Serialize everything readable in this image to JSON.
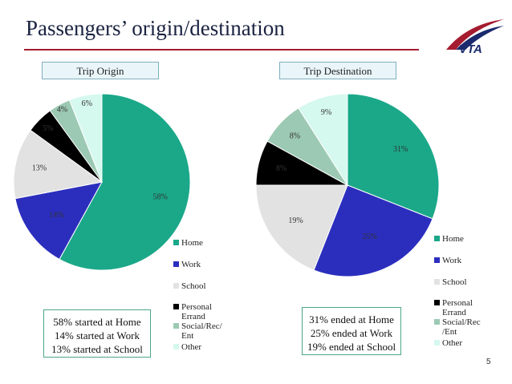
{
  "slide": {
    "title": "Passengers’ origin/destination",
    "logo_text": "VTA",
    "page_number": "5"
  },
  "colors": {
    "title": "#1a2240",
    "rule": "#a51c30",
    "label_box_border": "#7fb0bf",
    "label_box_fill": "#e9f5f9",
    "summary_border": "#4ba58a",
    "logo_red": "#a51c30",
    "logo_navy": "#1a2a6c"
  },
  "chart_data": [
    {
      "type": "pie",
      "title": "Trip Origin",
      "categories": [
        "Home",
        "Work",
        "School",
        "Personal Errand",
        "Social/Rec/Ent",
        "Other"
      ],
      "values": [
        58,
        14,
        13,
        5,
        4,
        6
      ],
      "value_labels": [
        "58%",
        "14%",
        "13%",
        "5%",
        "4%",
        "6%"
      ],
      "colors": [
        "#1aa889",
        "#2b2ebd",
        "#e2e2e2",
        "#000000",
        "#9cc9b3",
        "#d5f8ef"
      ],
      "legend_labels": [
        "Home",
        "Work",
        "School",
        "Personal Errand",
        "Social/Rec/ Ent",
        "Other"
      ],
      "summary": [
        "58% started at Home",
        "14% started at Work",
        "13% started at School"
      ]
    },
    {
      "type": "pie",
      "title": "Trip Destination",
      "categories": [
        "Home",
        "Work",
        "School",
        "Personal Errand",
        "Social/Rec/Ent",
        "Other"
      ],
      "values": [
        31,
        25,
        19,
        8,
        8,
        9
      ],
      "value_labels": [
        "31%",
        "25%",
        "19%",
        "8%",
        "8%",
        "9%"
      ],
      "colors": [
        "#1aa889",
        "#2b2ebd",
        "#e2e2e2",
        "#000000",
        "#9cc9b3",
        "#d5f8ef"
      ],
      "legend_labels": [
        "Home",
        "Work",
        "School",
        "Personal Errand",
        "Social/Rec /Ent",
        "Other"
      ],
      "summary": [
        "31% ended at Home",
        "25% ended at Work",
        "19% ended at School"
      ]
    }
  ]
}
